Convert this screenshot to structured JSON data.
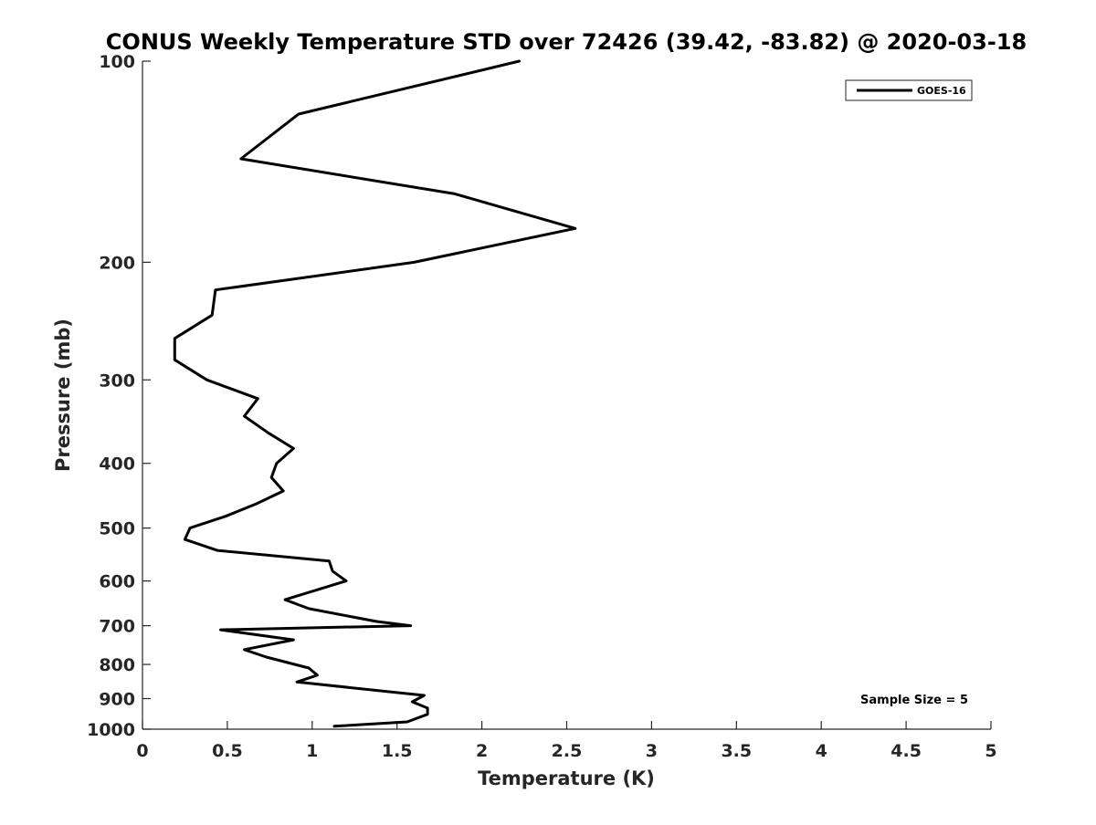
{
  "chart_data": {
    "type": "line",
    "title": "CONUS Weekly Temperature STD over 72426 (39.42, -83.82) @ 2020-03-18",
    "xlabel": "Temperature (K)",
    "ylabel": "Pressure (mb)",
    "xlim": [
      0,
      5
    ],
    "ylim": [
      1000,
      100
    ],
    "yscale": "log",
    "y_reversed": true,
    "grid": false,
    "legend_position": "top-right",
    "x_ticks": [
      0,
      0.5,
      1,
      1.5,
      2,
      2.5,
      3,
      3.5,
      4,
      4.5,
      5
    ],
    "x_tick_labels": [
      "0",
      "0.5",
      "1",
      "1.5",
      "2",
      "2.5",
      "3",
      "3.5",
      "4",
      "4.5",
      "5"
    ],
    "y_ticks": [
      100,
      200,
      300,
      400,
      500,
      600,
      700,
      800,
      900,
      1000
    ],
    "y_tick_labels": [
      "100",
      "200",
      "300",
      "400",
      "500",
      "600",
      "700",
      "800",
      "900",
      "1000"
    ],
    "series": [
      {
        "name": "GOES-16",
        "color": "#000000",
        "points": [
          [
            2.22,
            100
          ],
          [
            0.92,
            120
          ],
          [
            0.58,
            140
          ],
          [
            1.84,
            158
          ],
          [
            2.55,
            178
          ],
          [
            1.6,
            200
          ],
          [
            0.43,
            220
          ],
          [
            0.41,
            240
          ],
          [
            0.19,
            260
          ],
          [
            0.19,
            280
          ],
          [
            0.38,
            300
          ],
          [
            0.68,
            320
          ],
          [
            0.6,
            340
          ],
          [
            0.74,
            360
          ],
          [
            0.89,
            380
          ],
          [
            0.79,
            400
          ],
          [
            0.76,
            420
          ],
          [
            0.83,
            440
          ],
          [
            0.67,
            460
          ],
          [
            0.49,
            480
          ],
          [
            0.28,
            500
          ],
          [
            0.25,
            520
          ],
          [
            0.44,
            540
          ],
          [
            1.1,
            560
          ],
          [
            1.12,
            580
          ],
          [
            1.2,
            600
          ],
          [
            0.84,
            640
          ],
          [
            0.98,
            660
          ],
          [
            1.38,
            690
          ],
          [
            1.58,
            700
          ],
          [
            0.46,
            710
          ],
          [
            0.89,
            735
          ],
          [
            0.6,
            760
          ],
          [
            0.73,
            780
          ],
          [
            0.98,
            810
          ],
          [
            1.03,
            830
          ],
          [
            0.91,
            850
          ],
          [
            1.66,
            890
          ],
          [
            1.59,
            910
          ],
          [
            1.68,
            930
          ],
          [
            1.68,
            950
          ],
          [
            1.56,
            975
          ],
          [
            1.13,
            990
          ]
        ]
      }
    ],
    "annotation": "Sample Size = 5"
  }
}
